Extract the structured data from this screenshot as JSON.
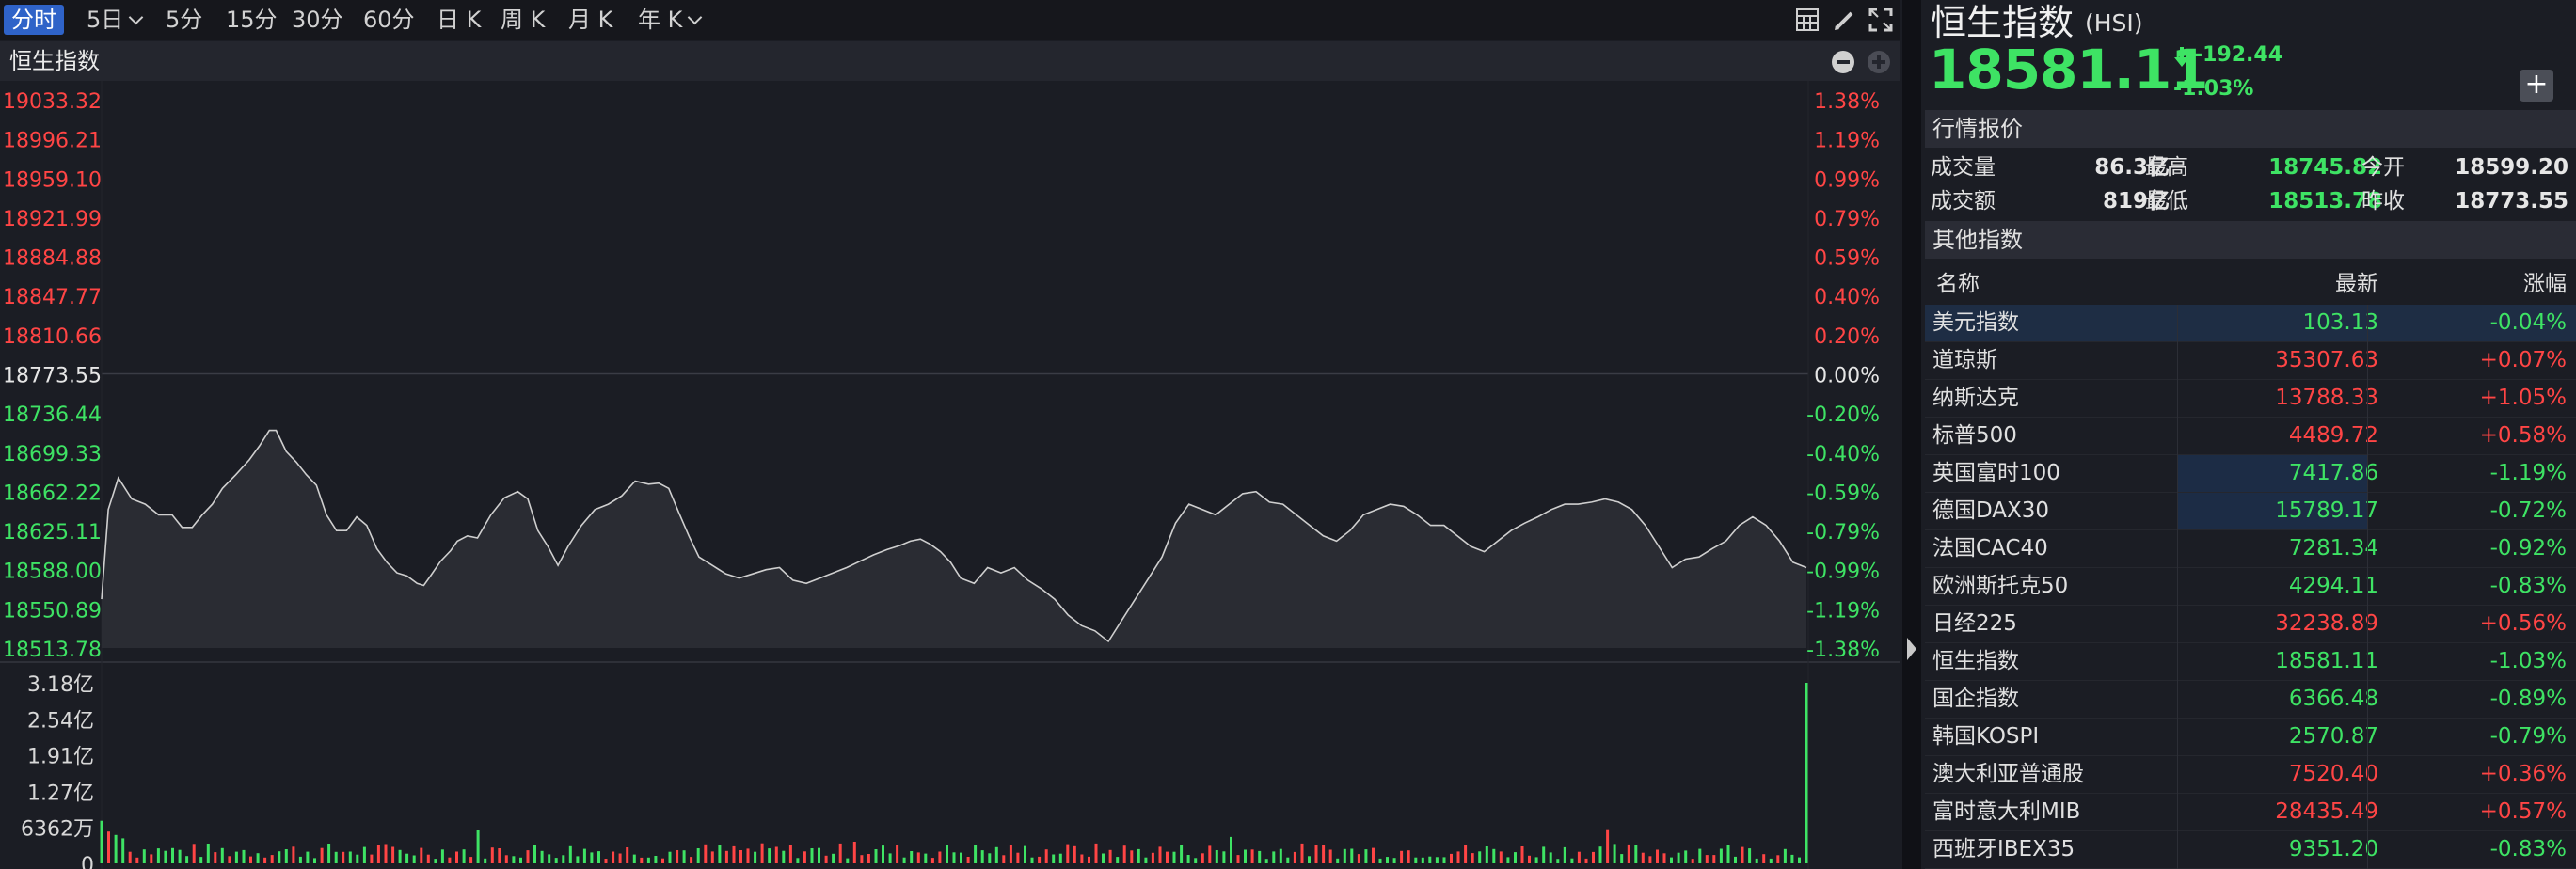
{
  "toolbar": {
    "periods": [
      "分时",
      "5日",
      "5分",
      "15分",
      "30分",
      "60分",
      "日 K",
      "周 K",
      "月 K",
      "年 K"
    ],
    "active_index": 0,
    "icons": [
      "grid-icon",
      "pen-icon",
      "fullscreen-icon"
    ]
  },
  "chart": {
    "title": "恒生指数",
    "price_labels": [
      "19033.32",
      "18996.21",
      "18959.10",
      "18921.99",
      "18884.88",
      "18847.77",
      "18810.66",
      "18773.55",
      "18736.44",
      "18699.33",
      "18662.22",
      "18625.11",
      "18588.00",
      "18550.89",
      "18513.78"
    ],
    "pct_labels": [
      "1.38%",
      "1.19%",
      "0.99%",
      "0.79%",
      "0.59%",
      "0.40%",
      "0.20%",
      "0.00%",
      "-0.20%",
      "-0.40%",
      "-0.59%",
      "-0.79%",
      "-0.99%",
      "-1.19%",
      "-1.38%"
    ],
    "volume_labels": [
      "3.18亿",
      "2.54亿",
      "1.91亿",
      "1.27亿",
      "6362万",
      "0"
    ],
    "colors": {
      "up": "#ff4545",
      "down": "#3ee364",
      "flat": "#e6e6e6",
      "line": "#cfcfcf"
    }
  },
  "chart_data": {
    "type": "line",
    "title": "恒生指数",
    "xlabel": "",
    "ylabel": "",
    "ylim": [
      18513.78,
      19033.32
    ],
    "reference_price": 18773.55,
    "x_count": 241,
    "series": [
      {
        "name": "",
        "keypoints": [
          [
            0,
            18560
          ],
          [
            2,
            18645
          ],
          [
            5,
            18675
          ],
          [
            9,
            18655
          ],
          [
            13,
            18650
          ],
          [
            17,
            18640
          ],
          [
            21,
            18640
          ],
          [
            24,
            18628
          ],
          [
            27,
            18628
          ],
          [
            30,
            18640
          ],
          [
            33,
            18650
          ],
          [
            36,
            18665
          ],
          [
            40,
            18678
          ],
          [
            44,
            18692
          ],
          [
            47,
            18705
          ],
          [
            50,
            18720
          ],
          [
            52,
            18720
          ],
          [
            55,
            18700
          ],
          [
            58,
            18690
          ],
          [
            61,
            18678
          ],
          [
            64,
            18668
          ],
          [
            67,
            18640
          ],
          [
            70,
            18625
          ],
          [
            73,
            18625
          ],
          [
            76,
            18638
          ],
          [
            79,
            18630
          ],
          [
            82,
            18608
          ],
          [
            85,
            18595
          ],
          [
            88,
            18585
          ],
          [
            91,
            18582
          ],
          [
            94,
            18575
          ],
          [
            96,
            18573
          ],
          [
            98,
            18582
          ],
          [
            101,
            18596
          ],
          [
            104,
            18606
          ],
          [
            106,
            18615
          ],
          [
            109,
            18620
          ],
          [
            112,
            18618
          ],
          [
            116,
            18640
          ],
          [
            120,
            18656
          ],
          [
            124,
            18662
          ],
          [
            127,
            18655
          ],
          [
            130,
            18625
          ],
          [
            133,
            18610
          ],
          [
            136,
            18592
          ],
          [
            139,
            18610
          ],
          [
            143,
            18630
          ],
          [
            147,
            18645
          ],
          [
            151,
            18650
          ],
          [
            155,
            18658
          ],
          [
            159,
            18672
          ],
          [
            163,
            18669
          ],
          [
            166,
            18670
          ],
          [
            169,
            18665
          ],
          [
            172,
            18642
          ],
          [
            175,
            18620
          ],
          [
            178,
            18600
          ],
          [
            182,
            18592
          ],
          [
            186,
            18584
          ],
          [
            190,
            18580
          ],
          [
            194,
            18584
          ],
          [
            198,
            18588
          ],
          [
            202,
            18590
          ],
          [
            206,
            18578
          ],
          [
            210,
            18575
          ],
          [
            214,
            18580
          ],
          [
            218,
            18585
          ],
          [
            222,
            18590
          ],
          [
            226,
            18596
          ],
          [
            230,
            18602
          ],
          [
            234,
            18607
          ],
          [
            238,
            18611
          ],
          [
            241,
            18615
          ],
          [
            244,
            18617
          ],
          [
            247,
            18612
          ],
          [
            250,
            18605
          ],
          [
            253,
            18595
          ],
          [
            256,
            18580
          ],
          [
            260,
            18575
          ],
          [
            264,
            18590
          ],
          [
            268,
            18585
          ],
          [
            272,
            18590
          ],
          [
            276,
            18578
          ],
          [
            280,
            18570
          ],
          [
            284,
            18560
          ],
          [
            288,
            18545
          ],
          [
            292,
            18535
          ],
          [
            296,
            18530
          ],
          [
            300,
            18520
          ],
          [
            304,
            18540
          ],
          [
            308,
            18560
          ],
          [
            312,
            18580
          ],
          [
            316,
            18600
          ],
          [
            320,
            18632
          ],
          [
            324,
            18650
          ],
          [
            328,
            18645
          ],
          [
            332,
            18640
          ],
          [
            336,
            18650
          ],
          [
            340,
            18660
          ],
          [
            344,
            18662
          ],
          [
            348,
            18652
          ],
          [
            352,
            18650
          ],
          [
            356,
            18640
          ],
          [
            360,
            18630
          ],
          [
            364,
            18620
          ],
          [
            368,
            18615
          ],
          [
            372,
            18625
          ],
          [
            376,
            18640
          ],
          [
            380,
            18645
          ],
          [
            384,
            18650
          ],
          [
            388,
            18648
          ],
          [
            392,
            18640
          ],
          [
            396,
            18630
          ],
          [
            400,
            18630
          ],
          [
            404,
            18620
          ],
          [
            408,
            18610
          ],
          [
            412,
            18605
          ],
          [
            416,
            18615
          ],
          [
            420,
            18625
          ],
          [
            424,
            18632
          ],
          [
            428,
            18638
          ],
          [
            432,
            18645
          ],
          [
            436,
            18650
          ],
          [
            440,
            18650
          ],
          [
            444,
            18652
          ],
          [
            448,
            18655
          ],
          [
            452,
            18652
          ],
          [
            456,
            18645
          ],
          [
            460,
            18630
          ],
          [
            464,
            18610
          ],
          [
            468,
            18590
          ],
          [
            472,
            18598
          ],
          [
            476,
            18600
          ],
          [
            480,
            18608
          ],
          [
            484,
            18615
          ],
          [
            488,
            18630
          ],
          [
            492,
            18638
          ],
          [
            496,
            18630
          ],
          [
            500,
            18615
          ],
          [
            504,
            18595
          ],
          [
            508,
            18590
          ]
        ]
      }
    ],
    "volume": {
      "unit": "亿",
      "ylim": [
        0,
        3.18
      ],
      "last_bar": 3.18
    }
  },
  "panel": {
    "name": "恒生指数",
    "code": "(HSI)",
    "price": "18581.11",
    "change": "-192.44",
    "change_pct": "-1.03%",
    "add_label": "+",
    "quote_header": "行情报价",
    "quote_rows": [
      {
        "l1": "成交量",
        "v1": "86.3亿",
        "l2": "最高",
        "v2": "18745.82",
        "l3": "今开",
        "v3": "18599.20"
      },
      {
        "l1": "成交额",
        "v1": "819亿",
        "l2": "最低",
        "v2": "18513.78",
        "l3": "昨收",
        "v3": "18773.55"
      }
    ],
    "other_header": "其他指数",
    "table_headers": [
      "名称",
      "最新",
      "涨幅"
    ],
    "indices": [
      {
        "name": "美元指数",
        "price": "103.13",
        "pct": "-0.04%",
        "up": false
      },
      {
        "name": "道琼斯",
        "price": "35307.63",
        "pct": "+0.07%",
        "up": true
      },
      {
        "name": "纳斯达克",
        "price": "13788.33",
        "pct": "+1.05%",
        "up": true
      },
      {
        "name": "标普500",
        "price": "4489.72",
        "pct": "+0.58%",
        "up": true
      },
      {
        "name": "英国富时100",
        "price": "7417.86",
        "pct": "-1.19%",
        "up": false
      },
      {
        "name": "德国DAX30",
        "price": "15789.17",
        "pct": "-0.72%",
        "up": false
      },
      {
        "name": "法国CAC40",
        "price": "7281.34",
        "pct": "-0.92%",
        "up": false
      },
      {
        "name": "欧洲斯托克50",
        "price": "4294.11",
        "pct": "-0.83%",
        "up": false
      },
      {
        "name": "日经225",
        "price": "32238.89",
        "pct": "+0.56%",
        "up": true
      },
      {
        "name": "恒生指数",
        "price": "18581.11",
        "pct": "-1.03%",
        "up": false
      },
      {
        "name": "国企指数",
        "price": "6366.48",
        "pct": "-0.89%",
        "up": false
      },
      {
        "name": "韩国KOSPI",
        "price": "2570.87",
        "pct": "-0.79%",
        "up": false
      },
      {
        "name": "澳大利亚普通股",
        "price": "7520.40",
        "pct": "+0.36%",
        "up": true
      },
      {
        "name": "富时意大利MIB",
        "price": "28435.49",
        "pct": "+0.57%",
        "up": true
      },
      {
        "name": "西班牙IBEX35",
        "price": "9351.20",
        "pct": "-0.83%",
        "up": false
      }
    ]
  }
}
